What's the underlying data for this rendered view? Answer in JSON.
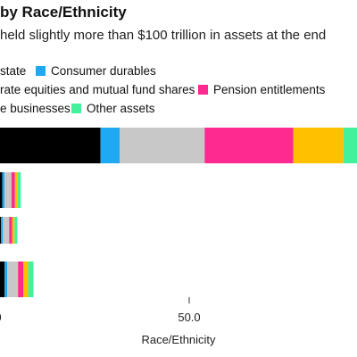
{
  "title": "by Race/Ethnicity",
  "subtitle": "held slightly more than $100 trillion in assets at the end",
  "legend": [
    {
      "label": "state",
      "color": "#e0e0e0"
    },
    {
      "label": "Consumer durables",
      "color": "#1fa9f2"
    },
    {
      "label": "rate equities and mutual fund shares",
      "color": "#000000"
    },
    {
      "label": "Pension entitlements",
      "color": "#ff2a8f"
    },
    {
      "label": "e businesses",
      "color": "#ffc000"
    },
    {
      "label": "Other assets",
      "color": "#43f09b"
    }
  ],
  "chart_data": {
    "type": "bar",
    "orientation": "horizontal",
    "stacked": true,
    "xlabel": "Race/Ethnicity",
    "x_ticks": [
      "0",
      "50.0"
    ],
    "x_tick_values": [
      0,
      50
    ],
    "categories": [
      "",
      "",
      "",
      ""
    ],
    "series": [
      {
        "name": "Corporate equities and mutual fund shares",
        "color": "#000000",
        "values": [
          27,
          1.5,
          1.2,
          2.1
        ]
      },
      {
        "name": "Consumer durables",
        "color": "#1fa9f2",
        "values": [
          5,
          0.6,
          0.5,
          0.7
        ]
      },
      {
        "name": "Real estate",
        "color": "#c8c8c8",
        "values": [
          22,
          1.8,
          1.6,
          2.8
        ]
      },
      {
        "name": "Pension entitlements",
        "color": "#ff2a8f",
        "values": [
          23,
          0.9,
          0.8,
          1.4
        ]
      },
      {
        "name": "Private businesses",
        "color": "#ffc000",
        "values": [
          13,
          0.7,
          0.6,
          1.2
        ]
      },
      {
        "name": "Other assets",
        "color": "#43f09b",
        "values": [
          21,
          0.8,
          0.7,
          1.4
        ]
      }
    ]
  }
}
